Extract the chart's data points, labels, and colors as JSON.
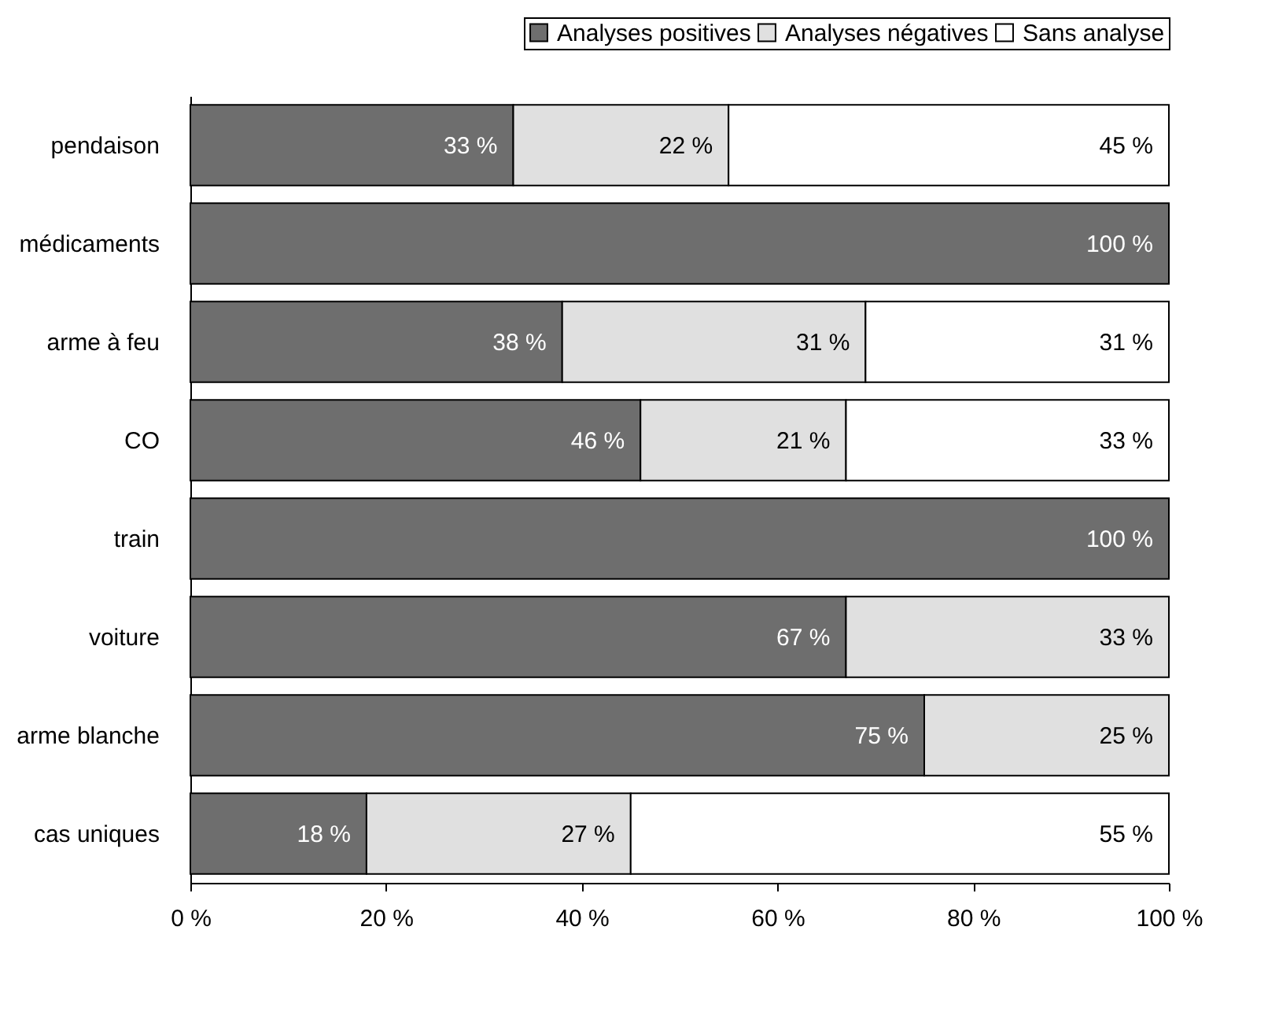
{
  "chart_data": {
    "type": "bar",
    "orientation": "horizontal",
    "stacked": true,
    "legend": "top right",
    "grid": false,
    "categories": [
      "pendaison",
      "médicaments",
      "arme à feu",
      "CO",
      "train",
      "voiture",
      "arme blanche",
      "cas uniques"
    ],
    "xlim": [
      0,
      100
    ],
    "xticks": [
      {
        "value": 0,
        "label": "0 %"
      },
      {
        "value": 20,
        "label": "20 %"
      },
      {
        "value": 40,
        "label": "40 %"
      },
      {
        "value": 60,
        "label": "60 %"
      },
      {
        "value": 80,
        "label": "80 %"
      },
      {
        "value": 100,
        "label": "100 %"
      }
    ],
    "series": [
      {
        "name": "Analyses positives",
        "color": "#6e6e6e",
        "values": [
          33,
          100,
          38,
          46,
          100,
          67,
          75,
          18
        ],
        "value_labels": [
          "33 %",
          "100 %",
          "38 %",
          "46 %",
          "100 %",
          "67 %",
          "75 %",
          "18 %"
        ]
      },
      {
        "name": "Analyses négatives",
        "color": "#e0e0e0",
        "values": [
          22,
          0,
          31,
          21,
          0,
          33,
          25,
          27
        ],
        "value_labels": [
          "22 %",
          null,
          "31 %",
          "21 %",
          null,
          "33 %",
          "25 %",
          "27 %"
        ]
      },
      {
        "name": "Sans analyse",
        "color": "#ffffff",
        "values": [
          45,
          0,
          31,
          33,
          0,
          0,
          0,
          55
        ],
        "value_labels": [
          "45 %",
          null,
          "31 %",
          "33 %",
          null,
          null,
          null,
          "55 %"
        ]
      }
    ]
  }
}
